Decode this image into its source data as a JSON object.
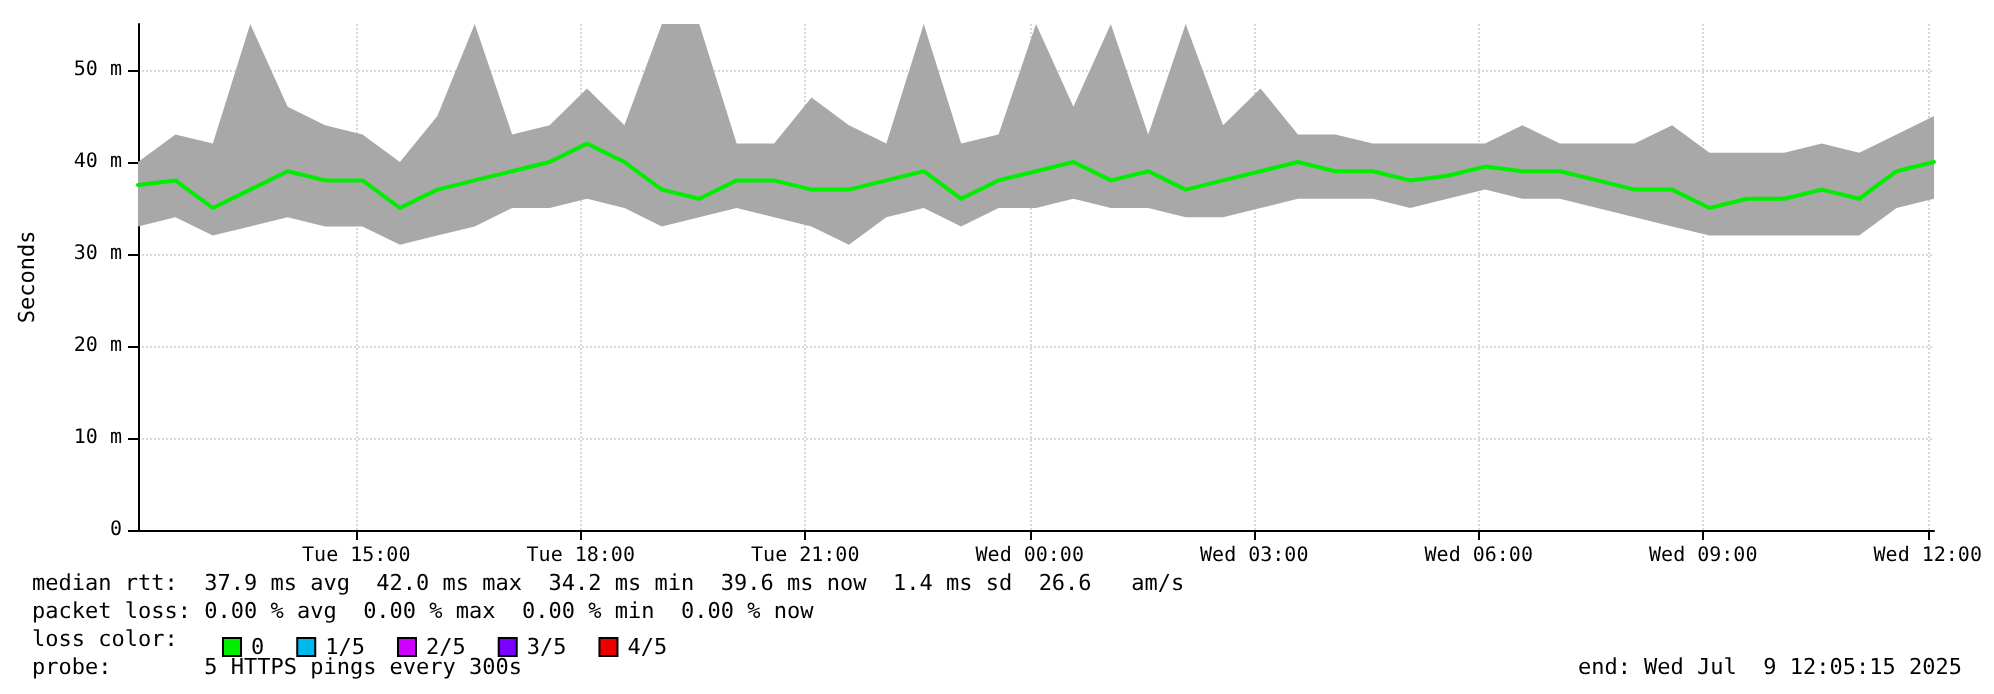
{
  "chart_data": {
    "type": "line",
    "ylabel": "Seconds",
    "legend_title": "loss color:",
    "legend": "bottom left",
    "grid": true,
    "marker": "none",
    "line_style": "solid",
    "x": [
      "2025-07-08T12:05",
      "2025-07-08T12:35",
      "2025-07-08T13:05",
      "2025-07-08T13:35",
      "2025-07-08T14:05",
      "2025-07-08T14:35",
      "2025-07-08T15:05",
      "2025-07-08T15:35",
      "2025-07-08T16:05",
      "2025-07-08T16:35",
      "2025-07-08T17:05",
      "2025-07-08T17:35",
      "2025-07-08T18:05",
      "2025-07-08T18:35",
      "2025-07-08T19:05",
      "2025-07-08T19:35",
      "2025-07-08T20:05",
      "2025-07-08T20:35",
      "2025-07-08T21:05",
      "2025-07-08T21:35",
      "2025-07-08T22:05",
      "2025-07-08T22:35",
      "2025-07-08T23:05",
      "2025-07-08T23:35",
      "2025-07-09T00:05",
      "2025-07-09T00:35",
      "2025-07-09T01:05",
      "2025-07-09T01:35",
      "2025-07-09T02:05",
      "2025-07-09T02:35",
      "2025-07-09T03:05",
      "2025-07-09T03:35",
      "2025-07-09T04:05",
      "2025-07-09T04:35",
      "2025-07-09T05:05",
      "2025-07-09T05:35",
      "2025-07-09T06:05",
      "2025-07-09T06:35",
      "2025-07-09T07:05",
      "2025-07-09T07:35",
      "2025-07-09T08:05",
      "2025-07-09T08:35",
      "2025-07-09T09:05",
      "2025-07-09T09:35",
      "2025-07-09T10:05",
      "2025-07-09T10:35",
      "2025-07-09T11:05",
      "2025-07-09T11:35",
      "2025-07-09T12:05"
    ],
    "series": [
      {
        "name": "0",
        "color": "#00ee00",
        "values": [
          37.5,
          38,
          35,
          37,
          39,
          38,
          38,
          35,
          37,
          38,
          39,
          40,
          42,
          40,
          37,
          36,
          38,
          38,
          37,
          37,
          38,
          39,
          36,
          38,
          39,
          40,
          38,
          39,
          37,
          38,
          39,
          40,
          39,
          39,
          38,
          38.5,
          39.5,
          39,
          39,
          38,
          37,
          37,
          35,
          36,
          36,
          37,
          36,
          39,
          40
        ],
        "lower": [
          33,
          34,
          32,
          33,
          34,
          33,
          33,
          31,
          32,
          33,
          35,
          35,
          36,
          35,
          33,
          34,
          35,
          34,
          33,
          31,
          34,
          35,
          33,
          35,
          35,
          36,
          35,
          35,
          34,
          34,
          35,
          36,
          36,
          36,
          35,
          36,
          37,
          36,
          36,
          35,
          34,
          33,
          32,
          32,
          32,
          32,
          32,
          35,
          36
        ],
        "upper": [
          40,
          43,
          42,
          55,
          46,
          44,
          43,
          40,
          45,
          55,
          43,
          44,
          48,
          44,
          55,
          55,
          42,
          42,
          47,
          44,
          42,
          55,
          42,
          43,
          55,
          46,
          55,
          43,
          55,
          44,
          48,
          43,
          43,
          42,
          42,
          42,
          42,
          44,
          42,
          42,
          42,
          44,
          41,
          41,
          41,
          42,
          41,
          43,
          45
        ]
      },
      {
        "name": "1/5",
        "color": "#00b8ee",
        "values": [
          null,
          null,
          null,
          null,
          null,
          null,
          null,
          null,
          null,
          null,
          null,
          null,
          null,
          null,
          null,
          null,
          null,
          null,
          null,
          null,
          null,
          null,
          null,
          null,
          null,
          null,
          null,
          null,
          null,
          null,
          null,
          null,
          null,
          null,
          null,
          null,
          null,
          null,
          null,
          null,
          null,
          null,
          null,
          null,
          null,
          null,
          null,
          null,
          null
        ]
      },
      {
        "name": "2/5",
        "color": "#d000ff",
        "values": [
          null,
          null,
          null,
          null,
          null,
          null,
          null,
          null,
          null,
          null,
          null,
          null,
          null,
          null,
          null,
          null,
          null,
          null,
          null,
          null,
          null,
          null,
          null,
          null,
          null,
          null,
          null,
          null,
          null,
          null,
          null,
          null,
          null,
          null,
          null,
          null,
          null,
          null,
          null,
          null,
          null,
          null,
          null,
          null,
          null,
          null,
          null,
          null,
          null
        ]
      },
      {
        "name": "3/5",
        "color": "#7a00ff",
        "values": [
          null,
          null,
          null,
          null,
          null,
          null,
          null,
          null,
          null,
          null,
          null,
          null,
          null,
          null,
          null,
          null,
          null,
          null,
          null,
          null,
          null,
          null,
          null,
          null,
          null,
          null,
          null,
          null,
          null,
          null,
          null,
          null,
          null,
          null,
          null,
          null,
          null,
          null,
          null,
          null,
          null,
          null,
          null,
          null,
          null,
          null,
          null,
          null,
          null
        ]
      },
      {
        "name": "4/5",
        "color": "#ee0000",
        "values": [
          null,
          null,
          null,
          null,
          null,
          null,
          null,
          null,
          null,
          null,
          null,
          null,
          null,
          null,
          null,
          null,
          null,
          null,
          null,
          null,
          null,
          null,
          null,
          null,
          null,
          null,
          null,
          null,
          null,
          null,
          null,
          null,
          null,
          null,
          null,
          null,
          null,
          null,
          null,
          null,
          null,
          null,
          null,
          null,
          null,
          null,
          null,
          null,
          null
        ]
      }
    ],
    "xlim": [
      "2025-07-08T12:05",
      "2025-07-09T12:05"
    ],
    "xticks": [
      {
        "value": "2025-07-08T15:00",
        "label": "Tue 15:00"
      },
      {
        "value": "2025-07-08T18:00",
        "label": "Tue 18:00"
      },
      {
        "value": "2025-07-08T21:00",
        "label": "Tue 21:00"
      },
      {
        "value": "2025-07-09T00:00",
        "label": "Wed 00:00"
      },
      {
        "value": "2025-07-09T03:00",
        "label": "Wed 03:00"
      },
      {
        "value": "2025-07-09T06:00",
        "label": "Wed 06:00"
      },
      {
        "value": "2025-07-09T09:00",
        "label": "Wed 09:00"
      },
      {
        "value": "2025-07-09T12:00",
        "label": "Wed 12:00"
      }
    ],
    "ylim": [
      0,
      55
    ],
    "yticks": [
      0,
      {
        "value": 10,
        "label": "10 m"
      },
      {
        "value": 20,
        "label": "20 m"
      },
      {
        "value": 30,
        "label": "30 m"
      },
      {
        "value": 40,
        "label": "40 m"
      },
      {
        "value": 50,
        "label": "50 m"
      }
    ],
    "annotations": [
      "median rtt:  37.9 ms avg  42.0 ms max  34.2 ms min  39.6 ms now  1.4 ms sd  26.6   am/s",
      "packet loss: 0.00 % avg  0.00 % max  0.00 % min  0.00 % now",
      "probe:       5 HTTPS pings every 300s",
      "end: Wed Jul  9 12:05:15 2025"
    ]
  }
}
